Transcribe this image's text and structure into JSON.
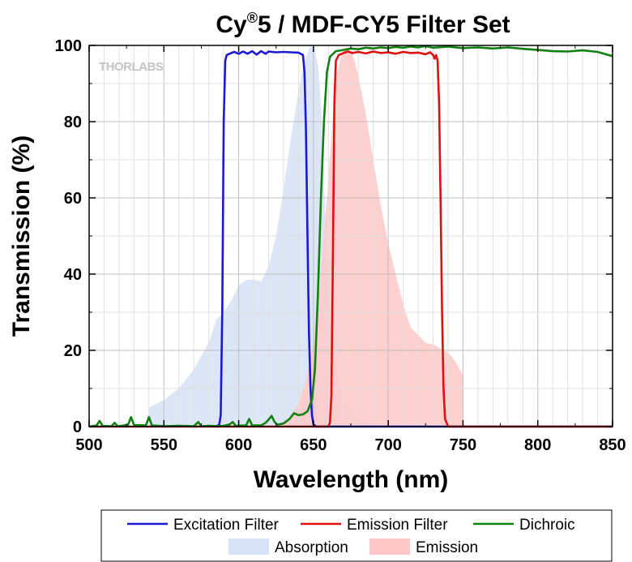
{
  "chart_data": {
    "type": "line",
    "title_main": "Cy",
    "title_sup": "®",
    "title_rest": "5 / MDF-CY5 Filter Set",
    "xlabel": "Wavelength (nm)",
    "ylabel": "Transmission (%)",
    "xlim": [
      500,
      850
    ],
    "ylim": [
      0,
      100
    ],
    "xticks": [
      500,
      550,
      600,
      650,
      700,
      750,
      800,
      850
    ],
    "yticks": [
      0,
      20,
      40,
      60,
      80,
      100
    ],
    "x_minor_step": 10,
    "y_minor_step": 10,
    "grid": true,
    "legend_position": "bottom-outside",
    "watermark": "THORLABS",
    "series": [
      {
        "name": "Excitation Filter",
        "kind": "line",
        "color": "#1a1ad6",
        "points": [
          [
            585,
            0
          ],
          [
            587,
            0.5
          ],
          [
            588,
            3
          ],
          [
            589,
            30
          ],
          [
            590,
            80
          ],
          [
            591,
            96
          ],
          [
            592,
            97.5
          ],
          [
            595,
            98
          ],
          [
            597,
            98.3
          ],
          [
            600,
            97.8
          ],
          [
            603,
            98.4
          ],
          [
            606,
            97.8
          ],
          [
            609,
            98.5
          ],
          [
            612,
            97.6
          ],
          [
            615,
            98.5
          ],
          [
            618,
            97.8
          ],
          [
            620,
            98.4
          ],
          [
            625,
            98.2
          ],
          [
            630,
            98.3
          ],
          [
            635,
            98.2
          ],
          [
            640,
            98.1
          ],
          [
            643,
            97.5
          ],
          [
            644,
            93
          ],
          [
            645,
            78
          ],
          [
            646,
            50
          ],
          [
            647,
            25
          ],
          [
            648,
            10
          ],
          [
            649,
            3
          ],
          [
            650,
            0.5
          ],
          [
            652,
            0
          ],
          [
            850,
            0
          ]
        ]
      },
      {
        "name": "Emission Filter",
        "kind": "line",
        "color": "#e01010",
        "points": [
          [
            500,
            0
          ],
          [
            660,
            0
          ],
          [
            661,
            1
          ],
          [
            662,
            8
          ],
          [
            663,
            45
          ],
          [
            664,
            85
          ],
          [
            665,
            96
          ],
          [
            667,
            97.5
          ],
          [
            670,
            98
          ],
          [
            673,
            98.4
          ],
          [
            676,
            98
          ],
          [
            680,
            98.3
          ],
          [
            685,
            97.9
          ],
          [
            690,
            98.4
          ],
          [
            695,
            98
          ],
          [
            700,
            98.2
          ],
          [
            705,
            97.8
          ],
          [
            710,
            98.3
          ],
          [
            715,
            98
          ],
          [
            720,
            98.1
          ],
          [
            725,
            97.7
          ],
          [
            728,
            98.2
          ],
          [
            730,
            97.5
          ],
          [
            731,
            96.5
          ],
          [
            732,
            97.5
          ],
          [
            733,
            96
          ],
          [
            734,
            85
          ],
          [
            735,
            60
          ],
          [
            736,
            30
          ],
          [
            737,
            10
          ],
          [
            738,
            2
          ],
          [
            740,
            0
          ],
          [
            850,
            0
          ]
        ]
      },
      {
        "name": "Dichroic",
        "kind": "line",
        "color": "#108010",
        "points": [
          [
            500,
            0
          ],
          [
            505,
            0.3
          ],
          [
            507,
            1.5
          ],
          [
            509,
            0.2
          ],
          [
            515,
            0.1
          ],
          [
            517,
            1
          ],
          [
            519,
            0.1
          ],
          [
            526,
            0.4
          ],
          [
            528,
            2.5
          ],
          [
            530,
            0.4
          ],
          [
            538,
            0.3
          ],
          [
            540,
            2.5
          ],
          [
            542,
            0.3
          ],
          [
            550,
            0.1
          ],
          [
            560,
            0.2
          ],
          [
            570,
            0.1
          ],
          [
            573,
            1.2
          ],
          [
            575,
            0.1
          ],
          [
            580,
            0.2
          ],
          [
            585,
            0.1
          ],
          [
            590,
            0.2
          ],
          [
            594,
            0.6
          ],
          [
            596,
            1.2
          ],
          [
            598,
            0.2
          ],
          [
            605,
            0.3
          ],
          [
            607,
            2
          ],
          [
            609,
            0.3
          ],
          [
            615,
            0.3
          ],
          [
            618,
            1
          ],
          [
            620,
            1.8
          ],
          [
            622,
            2.8
          ],
          [
            624,
            1.2
          ],
          [
            626,
            0.5
          ],
          [
            630,
            0.8
          ],
          [
            634,
            2
          ],
          [
            637,
            3.5
          ],
          [
            640,
            3
          ],
          [
            643,
            3.2
          ],
          [
            646,
            4
          ],
          [
            649,
            7
          ],
          [
            651,
            15
          ],
          [
            653,
            35
          ],
          [
            655,
            60
          ],
          [
            657,
            80
          ],
          [
            659,
            93
          ],
          [
            661,
            97
          ],
          [
            665,
            98.5
          ],
          [
            670,
            98.8
          ],
          [
            675,
            99.2
          ],
          [
            680,
            99
          ],
          [
            685,
            99.4
          ],
          [
            690,
            99.2
          ],
          [
            695,
            99.5
          ],
          [
            700,
            99.3
          ],
          [
            705,
            99.6
          ],
          [
            710,
            99.4
          ],
          [
            715,
            99.7
          ],
          [
            720,
            99.5
          ],
          [
            725,
            99.8
          ],
          [
            730,
            99.4
          ],
          [
            740,
            99.7
          ],
          [
            750,
            99.3
          ],
          [
            760,
            99.5
          ],
          [
            770,
            99.2
          ],
          [
            780,
            99.5
          ],
          [
            790,
            99.1
          ],
          [
            800,
            98.8
          ],
          [
            810,
            98.5
          ],
          [
            820,
            98.4
          ],
          [
            830,
            98.7
          ],
          [
            840,
            98.3
          ],
          [
            850,
            97.2
          ]
        ]
      },
      {
        "name": "Absorption",
        "kind": "area",
        "color": "#d6e2f5",
        "points": [
          [
            540,
            5
          ],
          [
            550,
            7
          ],
          [
            560,
            10
          ],
          [
            570,
            15
          ],
          [
            580,
            22
          ],
          [
            585,
            28
          ],
          [
            590,
            30
          ],
          [
            595,
            33
          ],
          [
            600,
            37
          ],
          [
            605,
            38.5
          ],
          [
            610,
            38.5
          ],
          [
            615,
            38
          ],
          [
            620,
            42
          ],
          [
            625,
            50
          ],
          [
            630,
            62
          ],
          [
            635,
            76
          ],
          [
            640,
            88
          ],
          [
            644,
            96
          ],
          [
            648,
            100
          ],
          [
            651,
            99
          ],
          [
            653,
            95
          ],
          [
            655,
            85
          ],
          [
            657,
            65
          ],
          [
            659,
            45
          ],
          [
            661,
            30
          ],
          [
            663,
            22
          ],
          [
            665,
            15
          ],
          [
            670,
            8
          ],
          [
            675,
            4
          ],
          [
            680,
            2
          ],
          [
            690,
            0.5
          ],
          [
            700,
            0
          ]
        ]
      },
      {
        "name": "Emission",
        "kind": "area",
        "color": "#ffc8c8",
        "points": [
          [
            630,
            0
          ],
          [
            640,
            6
          ],
          [
            645,
            12
          ],
          [
            650,
            22
          ],
          [
            655,
            40
          ],
          [
            660,
            65
          ],
          [
            663,
            82
          ],
          [
            666,
            93
          ],
          [
            669,
            98
          ],
          [
            672,
            99.5
          ],
          [
            676,
            98
          ],
          [
            680,
            92
          ],
          [
            685,
            82
          ],
          [
            690,
            70
          ],
          [
            695,
            58
          ],
          [
            700,
            48
          ],
          [
            705,
            40
          ],
          [
            710,
            32
          ],
          [
            715,
            26
          ],
          [
            720,
            24
          ],
          [
            725,
            22
          ],
          [
            730,
            21.5
          ],
          [
            735,
            20.5
          ],
          [
            740,
            19.5
          ],
          [
            745,
            17
          ],
          [
            750,
            13.5
          ],
          [
            750,
            0
          ]
        ]
      }
    ]
  }
}
